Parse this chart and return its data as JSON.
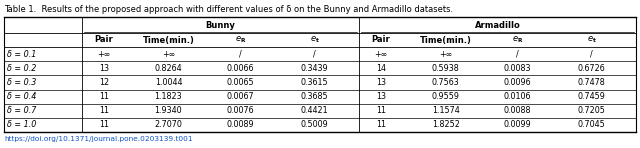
{
  "title": "Table 1.  Results of the proposed approach with different values of δ on the Bunny and Armadillo datasets.",
  "doi": "https://doi.org/10.1371/journal.pone.0203139.t001",
  "rows": [
    [
      "δ = 0.1",
      "+∞",
      "+∞",
      "/",
      "/",
      "+∞",
      "+∞",
      "/",
      "/"
    ],
    [
      "δ = 0.2",
      "13",
      "0.8264",
      "0.0066",
      "0.3439",
      "14",
      "0.5938",
      "0.0083",
      "0.6726"
    ],
    [
      "δ = 0.3",
      "12",
      "1.0044",
      "0.0065",
      "0.3615",
      "13",
      "0.7563",
      "0.0096",
      "0.7478"
    ],
    [
      "δ = 0.4",
      "11",
      "1.1823",
      "0.0067",
      "0.3685",
      "13",
      "0.9559",
      "0.0106",
      "0.7459"
    ],
    [
      "δ = 0.7",
      "11",
      "1.9340",
      "0.0076",
      "0.4421",
      "11",
      "1.1574",
      "0.0088",
      "0.7205"
    ],
    [
      "δ = 1.0",
      "11",
      "2.7070",
      "0.0089",
      "0.5009",
      "11",
      "1.8252",
      "0.0099",
      "0.7045"
    ]
  ],
  "background_color": "#ffffff",
  "line_color": "#000000",
  "text_color": "#000000",
  "doi_color": "#1155cc"
}
